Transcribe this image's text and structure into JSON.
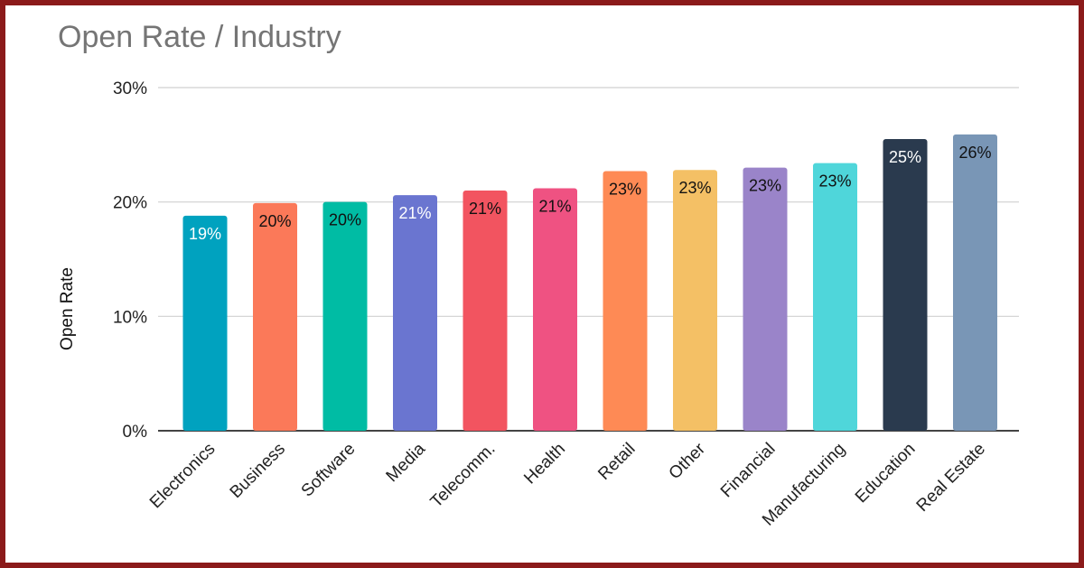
{
  "chart_data": {
    "type": "bar",
    "title": "Open Rate / Industry",
    "xlabel": "",
    "ylabel": "Open Rate",
    "ylim": [
      0,
      30
    ],
    "yticks": [
      "0%",
      "10%",
      "20%",
      "30%"
    ],
    "ytick_values": [
      0,
      10,
      20,
      30
    ],
    "grid": true,
    "categories": [
      "Electronics",
      "Business",
      "Software",
      "Media",
      "Telecomm.",
      "Health",
      "Retail",
      "Other",
      "Financial",
      "Manufacturing",
      "Education",
      "Real Estate"
    ],
    "values": [
      18.8,
      19.9,
      20.0,
      20.6,
      21.0,
      21.2,
      22.7,
      22.8,
      23.0,
      23.4,
      25.5,
      25.9
    ],
    "data_labels": [
      "19%",
      "20%",
      "20%",
      "21%",
      "21%",
      "21%",
      "23%",
      "23%",
      "23%",
      "23%",
      "25%",
      "26%"
    ],
    "colors": [
      "#00a2bf",
      "#fb7959",
      "#00bca4",
      "#6a75d0",
      "#f25460",
      "#ef5282",
      "#fe8a55",
      "#f4c065",
      "#9a84c9",
      "#4fd6da",
      "#2a3a4e",
      "#7996b6"
    ],
    "label_colors": [
      "#ffffff",
      "#111111",
      "#111111",
      "#ffffff",
      "#111111",
      "#111111",
      "#111111",
      "#111111",
      "#111111",
      "#111111",
      "#ffffff",
      "#111111"
    ]
  }
}
